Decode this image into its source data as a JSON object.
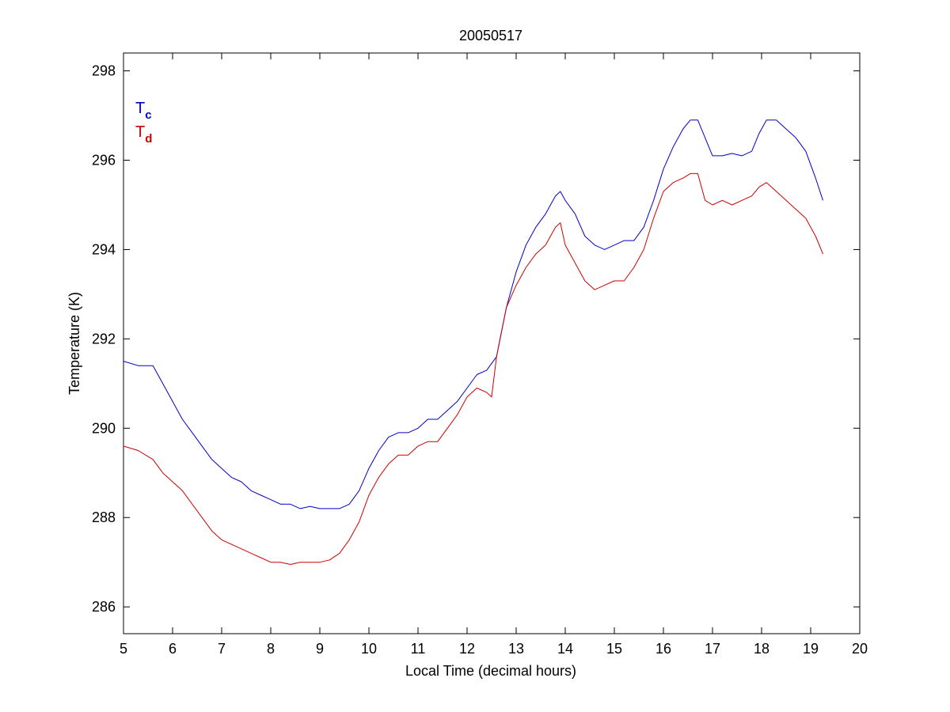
{
  "chart_data": {
    "type": "line",
    "title": "20050517",
    "xlabel": "Local Time (decimal hours)",
    "ylabel": "Temperature (K)",
    "xlim": [
      5,
      20
    ],
    "ylim": [
      285.4,
      298.4
    ],
    "xticks": [
      5,
      6,
      7,
      8,
      9,
      10,
      11,
      12,
      13,
      14,
      15,
      16,
      17,
      18,
      19,
      20
    ],
    "yticks": [
      286,
      288,
      290,
      292,
      294,
      296,
      298
    ],
    "grid": false,
    "legend_position": "top-left",
    "series": [
      {
        "name": "T",
        "subscript": "c",
        "color": "#0000cc",
        "x": [
          5.0,
          5.3,
          5.6,
          5.8,
          6.0,
          6.2,
          6.4,
          6.6,
          6.8,
          7.0,
          7.2,
          7.4,
          7.6,
          7.8,
          8.0,
          8.2,
          8.4,
          8.6,
          8.8,
          9.0,
          9.2,
          9.4,
          9.6,
          9.8,
          10.0,
          10.2,
          10.4,
          10.6,
          10.8,
          11.0,
          11.2,
          11.4,
          11.6,
          11.8,
          12.0,
          12.2,
          12.4,
          12.6,
          12.8,
          13.0,
          13.2,
          13.4,
          13.6,
          13.8,
          13.9,
          14.0,
          14.2,
          14.4,
          14.6,
          14.8,
          15.0,
          15.2,
          15.4,
          15.6,
          15.8,
          16.0,
          16.2,
          16.4,
          16.55,
          16.7,
          16.85,
          17.0,
          17.2,
          17.4,
          17.6,
          17.8,
          17.95,
          18.1,
          18.3,
          18.5,
          18.7,
          18.9,
          19.1,
          19.25
        ],
        "y": [
          291.5,
          291.4,
          291.4,
          291.0,
          290.6,
          290.2,
          289.9,
          289.6,
          289.3,
          289.1,
          288.9,
          288.8,
          288.6,
          288.5,
          288.4,
          288.3,
          288.3,
          288.2,
          288.25,
          288.2,
          288.2,
          288.2,
          288.3,
          288.6,
          289.1,
          289.5,
          289.8,
          289.9,
          289.9,
          290.0,
          290.2,
          290.2,
          290.4,
          290.6,
          290.9,
          291.2,
          291.3,
          291.6,
          292.7,
          293.5,
          294.1,
          294.5,
          294.8,
          295.2,
          295.3,
          295.1,
          294.8,
          294.3,
          294.1,
          294.0,
          294.1,
          294.2,
          294.2,
          294.5,
          295.1,
          295.8,
          296.3,
          296.7,
          296.9,
          296.9,
          296.5,
          296.1,
          296.1,
          296.15,
          296.1,
          296.2,
          296.6,
          296.9,
          296.9,
          296.7,
          296.5,
          296.2,
          295.6,
          295.1
        ]
      },
      {
        "name": "T",
        "subscript": "d",
        "color": "#cc0000",
        "x": [
          5.0,
          5.3,
          5.6,
          5.8,
          6.0,
          6.2,
          6.4,
          6.6,
          6.8,
          7.0,
          7.2,
          7.4,
          7.6,
          7.8,
          8.0,
          8.2,
          8.4,
          8.6,
          8.8,
          9.0,
          9.2,
          9.4,
          9.6,
          9.8,
          10.0,
          10.2,
          10.4,
          10.6,
          10.8,
          11.0,
          11.2,
          11.4,
          11.6,
          11.8,
          12.0,
          12.2,
          12.4,
          12.5,
          12.6,
          12.8,
          13.0,
          13.2,
          13.4,
          13.6,
          13.8,
          13.9,
          14.0,
          14.2,
          14.4,
          14.6,
          14.8,
          15.0,
          15.2,
          15.4,
          15.6,
          15.8,
          16.0,
          16.2,
          16.4,
          16.55,
          16.7,
          16.85,
          17.0,
          17.2,
          17.4,
          17.6,
          17.8,
          17.95,
          18.1,
          18.3,
          18.5,
          18.7,
          18.9,
          19.1,
          19.25
        ],
        "y": [
          289.6,
          289.5,
          289.3,
          289.0,
          288.8,
          288.6,
          288.3,
          288.0,
          287.7,
          287.5,
          287.4,
          287.3,
          287.2,
          287.1,
          287.0,
          287.0,
          286.95,
          287.0,
          287.0,
          287.0,
          287.05,
          287.2,
          287.5,
          287.9,
          288.5,
          288.9,
          289.2,
          289.4,
          289.4,
          289.6,
          289.7,
          289.7,
          290.0,
          290.3,
          290.7,
          290.9,
          290.8,
          290.7,
          291.6,
          292.7,
          293.2,
          293.6,
          293.9,
          294.1,
          294.5,
          294.6,
          294.1,
          293.7,
          293.3,
          293.1,
          293.2,
          293.3,
          293.3,
          293.6,
          294.0,
          294.7,
          295.3,
          295.5,
          295.6,
          295.7,
          295.7,
          295.1,
          295.0,
          295.1,
          295.0,
          295.1,
          295.2,
          295.4,
          295.5,
          295.3,
          295.1,
          294.9,
          294.7,
          294.3,
          293.9
        ]
      }
    ]
  }
}
